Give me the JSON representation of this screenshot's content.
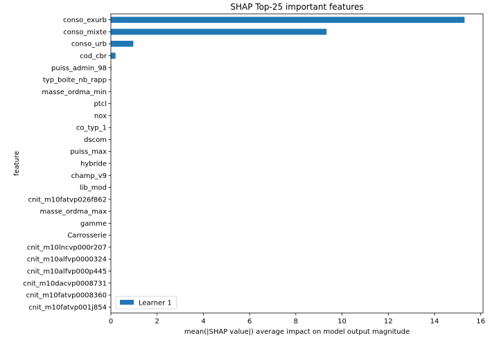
{
  "chart_data": {
    "type": "bar",
    "orientation": "horizontal",
    "title": "SHAP Top-25 important features",
    "xlabel": "mean(|SHAP value|) average impact on model output magnitude",
    "ylabel": "feature",
    "xlim": [
      0,
      16.1
    ],
    "xticks": [
      0,
      2,
      4,
      6,
      8,
      10,
      12,
      14,
      16
    ],
    "grid": false,
    "legend_position": "bottom-left",
    "categories": [
      "conso_exurb",
      "conso_mixte",
      "conso_urb",
      "cod_cbr",
      "puiss_admin_98",
      "typ_boite_nb_rapp",
      "masse_ordma_min",
      "ptcl",
      "nox",
      "co_typ_1",
      "dscom",
      "puiss_max",
      "hybride",
      "champ_v9",
      "lib_mod",
      "cnit_m10fatvp026f862",
      "masse_ordma_max",
      "gamme",
      "Carrosserie",
      "cnit_m10lncvp000r207",
      "cnit_m10alfvp0000324",
      "cnit_m10alfvp000p445",
      "cnit_m10dacvp0008731",
      "cnit_m10fatvp0008360",
      "cnit_m10fatvp001j854"
    ],
    "series": [
      {
        "name": "Learner 1",
        "color": "#1f77b4",
        "values": [
          15.3,
          9.33,
          0.97,
          0.2,
          0.02,
          0.01,
          0.01,
          0.005,
          0.005,
          0.005,
          0.004,
          0.004,
          0.003,
          0.003,
          0.003,
          0.002,
          0.002,
          0.002,
          0.002,
          0.001,
          0.001,
          0.001,
          0.001,
          0.001,
          0.001
        ]
      }
    ]
  }
}
